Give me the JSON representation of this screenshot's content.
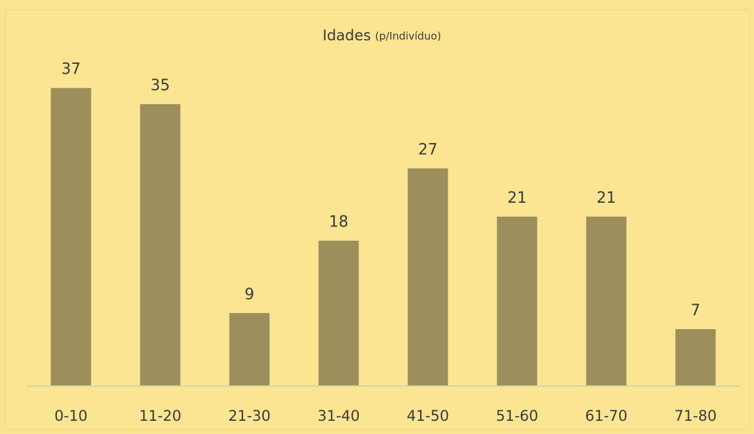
{
  "chart_data": {
    "type": "bar",
    "title": "Idades",
    "subtitle": "(p/Indivíduo)",
    "categories": [
      "0-10",
      "11-20",
      "21-30",
      "31-40",
      "41-50",
      "51-60",
      "61-70",
      "71-80"
    ],
    "values": [
      37,
      35,
      9,
      18,
      27,
      21,
      21,
      7
    ],
    "color": "#9d8f5c",
    "ylim": [
      0,
      40
    ]
  }
}
